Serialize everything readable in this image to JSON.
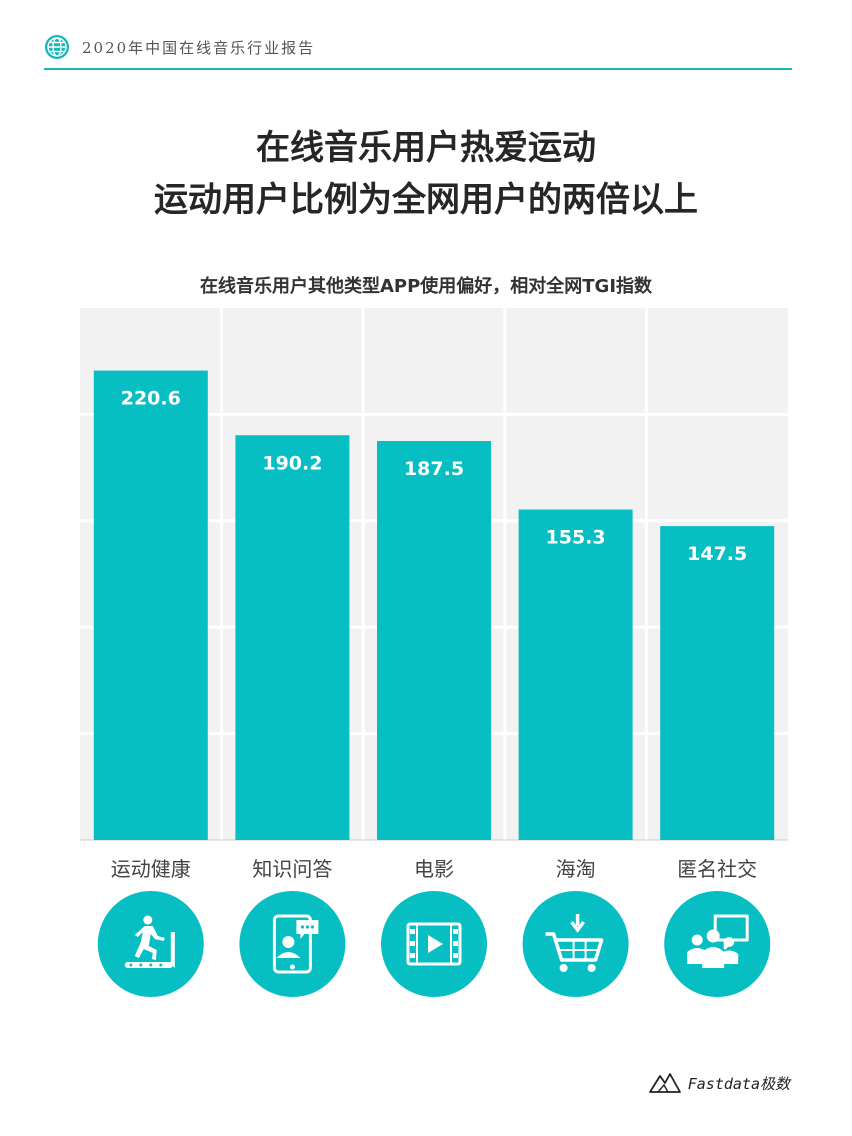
{
  "header": {
    "report_title": "2020年中国在线音乐行业报告"
  },
  "title": {
    "line1": "在线音乐用户热爱运动",
    "line2": "运动用户比例为全网用户的两倍以上"
  },
  "footer": {
    "brand": "Fastdata极数"
  },
  "colors": {
    "accent": "#13b8b8",
    "bar": "#07bec3",
    "plot_bg": "#f2f2f2"
  },
  "chart_data": {
    "type": "bar",
    "title": "在线音乐用户其他类型APP使用偏好，相对全网TGI指数",
    "categories": [
      "运动健康",
      "知识问答",
      "电影",
      "海淘",
      "匿名社交"
    ],
    "values": [
      220.6,
      190.2,
      187.5,
      155.3,
      147.5
    ],
    "value_labels": [
      "220.6",
      "190.2",
      "187.5",
      "155.3",
      "147.5"
    ],
    "category_icons": [
      "treadmill-icon",
      "phone-qa-icon",
      "film-play-icon",
      "shopping-cart-icon",
      "group-chat-icon"
    ],
    "ylim": [
      0,
      250
    ],
    "grid": true,
    "legend": "none"
  }
}
